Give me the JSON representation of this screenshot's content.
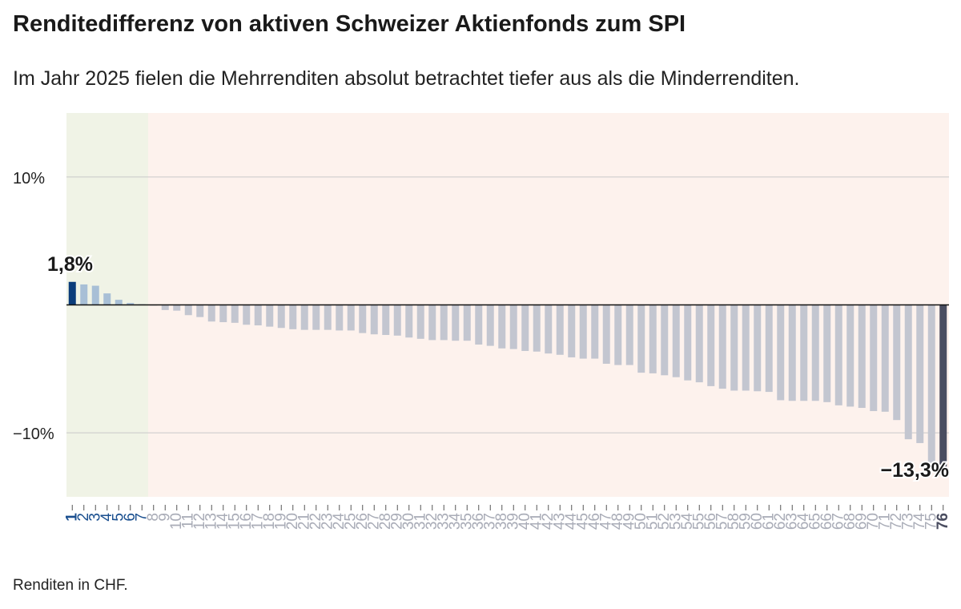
{
  "title": "Renditedifferenz von aktiven Schweizer Aktienfonds zum SPI",
  "subtitle": "Im Jahr 2025 fielen die Mehrrenditen absolut betrachtet tiefer aus als die Minderrenditen.",
  "footnote": "Renditen in CHF.",
  "colors": {
    "positive_bg": "#f0f3e6",
    "negative_bg": "#fdf2ed",
    "top_bar": "#0b3c7a",
    "positive_bar": "#a8bfd6",
    "negative_bar": "#c3c6d0",
    "bottom_bar": "#4a4d60",
    "top_label": "#1a4f8f",
    "other_label": "#a9acb7",
    "bottom_label": "#4a4d60"
  },
  "chart_data": {
    "type": "bar",
    "x": [
      1,
      2,
      3,
      4,
      5,
      6,
      7,
      8,
      9,
      10,
      11,
      12,
      13,
      14,
      15,
      16,
      17,
      18,
      19,
      20,
      21,
      22,
      23,
      24,
      25,
      26,
      27,
      28,
      29,
      30,
      31,
      32,
      33,
      34,
      35,
      36,
      37,
      38,
      39,
      40,
      41,
      42,
      43,
      44,
      45,
      46,
      47,
      48,
      49,
      50,
      51,
      52,
      53,
      54,
      55,
      56,
      57,
      58,
      59,
      60,
      61,
      62,
      63,
      64,
      65,
      66,
      67,
      68,
      69,
      70,
      71,
      72,
      73,
      74,
      75,
      76
    ],
    "values": [
      1.8,
      1.6,
      1.5,
      0.9,
      0.4,
      0.15,
      0.05,
      -0.05,
      -0.4,
      -0.45,
      -0.8,
      -0.95,
      -1.3,
      -1.35,
      -1.4,
      -1.55,
      -1.6,
      -1.7,
      -1.8,
      -1.9,
      -1.95,
      -1.95,
      -1.95,
      -2.0,
      -2.0,
      -2.2,
      -2.3,
      -2.35,
      -2.4,
      -2.55,
      -2.65,
      -2.75,
      -2.75,
      -2.8,
      -2.8,
      -3.1,
      -3.2,
      -3.4,
      -3.45,
      -3.6,
      -3.65,
      -3.8,
      -3.9,
      -4.1,
      -4.2,
      -4.2,
      -4.6,
      -4.7,
      -4.7,
      -5.3,
      -5.35,
      -5.5,
      -5.65,
      -5.9,
      -6.05,
      -6.35,
      -6.55,
      -6.7,
      -6.7,
      -6.75,
      -6.8,
      -7.45,
      -7.5,
      -7.5,
      -7.5,
      -7.6,
      -7.85,
      -7.95,
      -8.05,
      -8.3,
      -8.35,
      -9.0,
      -10.5,
      -10.8,
      -13.0,
      -13.3
    ],
    "ylim": [
      -15,
      15
    ],
    "yticks": [
      10,
      -10
    ],
    "ytick_labels": [
      "10%",
      "−10%"
    ],
    "positive_count": 7,
    "annotations": [
      {
        "index": 0,
        "label": "1,8%"
      },
      {
        "index": 75,
        "label": "−13,3%"
      }
    ]
  }
}
